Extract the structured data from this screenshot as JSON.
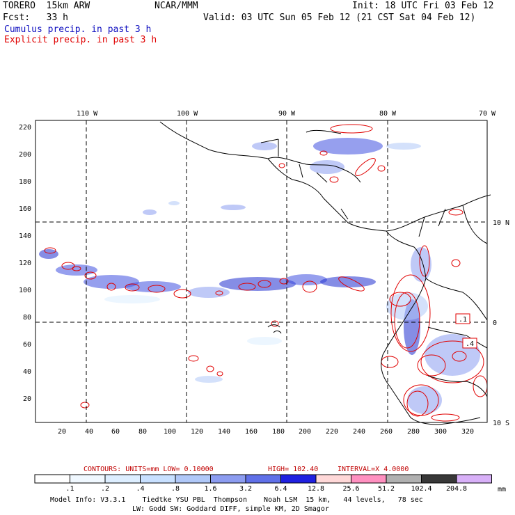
{
  "header": {
    "model": "TORERO  15km ARW",
    "org": "NCAR/MMM",
    "init": "Init: 18 UTC Fri 03 Feb 12",
    "fcst": "Fcst:   33 h",
    "valid": "Valid: 03 UTC Sun 05 Feb 12 (21 CST Sat 04 Feb 12)",
    "legend_cumulus": "Cumulus precip. in past 3 h",
    "legend_explicit": "Explicit precip. in past 3 h"
  },
  "colors": {
    "cumulus": "#1010c0",
    "explicit": "#e00000",
    "contour": "#e00000"
  },
  "map": {
    "lon_labels": [
      "110 W",
      "100 W",
      "90 W",
      "80 W",
      "70 W"
    ],
    "lat_labels": [
      "10 N",
      "0",
      "10 S"
    ],
    "y_ticks": [
      "20",
      "40",
      "60",
      "80",
      "100",
      "120",
      "140",
      "160",
      "180",
      "200",
      "220"
    ],
    "x_ticks": [
      "20",
      "40",
      "60",
      "80",
      "100",
      "120",
      "140",
      "160",
      "180",
      "200",
      "220",
      "240",
      "260",
      "280",
      "300",
      "320"
    ],
    "contour_labels": [
      ".1",
      ".4"
    ]
  },
  "contour_info": {
    "units": "CONTOURS:  UNITS=mm  LOW= 0.10000",
    "high": "HIGH=  102.40",
    "interval": "INTERVAL=X  4.0000"
  },
  "colorbar": {
    "values": [
      ".1",
      ".2",
      ".4",
      ".8",
      "1.6",
      "3.2",
      "6.4",
      "12.8",
      "25.6",
      "51.2",
      "102.4",
      "204.8"
    ],
    "unit": "mm",
    "colors": [
      "#ffffff",
      "#f0f8ff",
      "#ddeeff",
      "#c8e0ff",
      "#b0c8f8",
      "#8c9cf0",
      "#6070e8",
      "#2020e0",
      "#ffd8d8",
      "#ff90c0",
      "#b0b0b0",
      "#383838",
      "#d8b0f8"
    ]
  },
  "footer": {
    "line1": "Model Info: V3.3.1    Tiedtke YSU PBL  Thompson    Noah LSM  15 km,   44 levels,   78 sec",
    "line2": "LW: Godd SW: Goddard DIFF, simple KM, 2D Smagor"
  }
}
